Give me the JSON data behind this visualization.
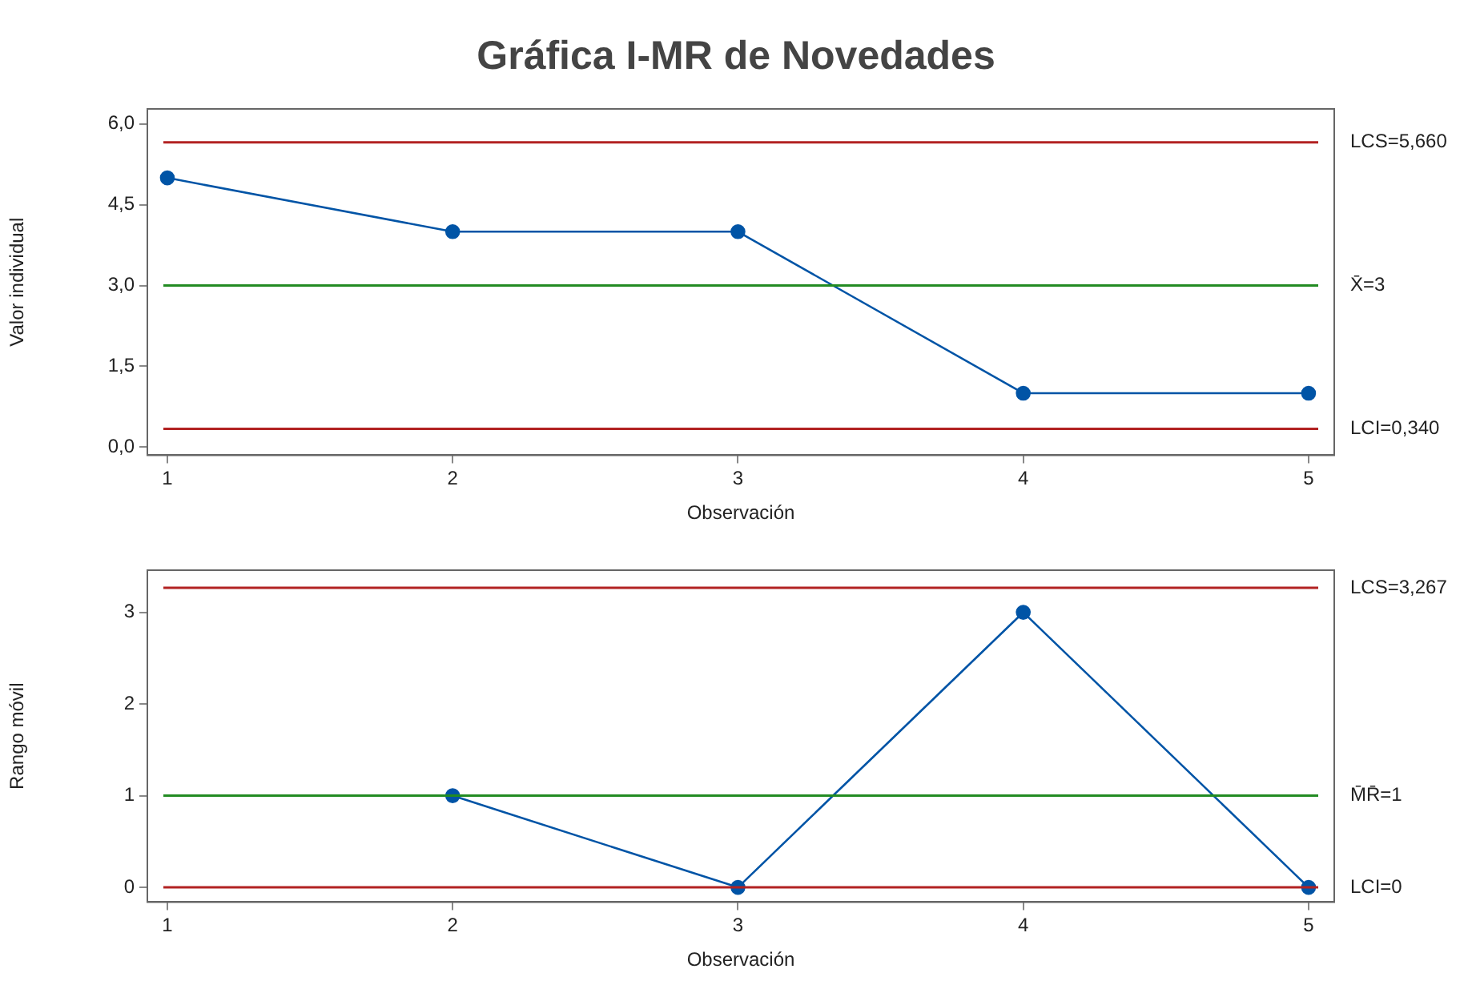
{
  "chart_data": [
    {
      "type": "line",
      "title": "Gráfica I-MR de Novedades",
      "xlabel": "Observación",
      "ylabel": "Valor individual",
      "x": [
        1,
        2,
        3,
        4,
        5
      ],
      "series": [
        {
          "color": "#0054a6",
          "values": [
            5,
            4,
            4,
            1,
            1
          ]
        }
      ],
      "xlim": [
        0.93,
        5.09
      ],
      "xticks": [
        1,
        2,
        3,
        4,
        5
      ],
      "ylim": [
        -0.15,
        6.28
      ],
      "yticks": [
        {
          "value": 0,
          "label": "0,0"
        },
        {
          "value": 1.5,
          "label": "1,5"
        },
        {
          "value": 3,
          "label": "3,0"
        },
        {
          "value": 4.5,
          "label": "4,5"
        },
        {
          "value": 6,
          "label": "6,0"
        }
      ],
      "ref_lines": [
        {
          "axis": "y",
          "value": 5.66,
          "label": "LCS=5,660",
          "color": "#b22222"
        },
        {
          "axis": "y",
          "value": 3,
          "label": "X̄=3",
          "color": "#228b22"
        },
        {
          "axis": "y",
          "value": 0.34,
          "label": "LCI=0,340",
          "color": "#b22222"
        }
      ],
      "marker": "circle",
      "grid": false,
      "legend": false
    },
    {
      "type": "line",
      "xlabel": "Observación",
      "ylabel": "Rango móvil",
      "series": [
        {
          "color": "#0054a6",
          "x": [
            2,
            3,
            4,
            5
          ],
          "values": [
            1,
            0,
            3,
            0
          ]
        }
      ],
      "xlim": [
        0.93,
        5.09
      ],
      "xticks": [
        1,
        2,
        3,
        4,
        5
      ],
      "ylim": [
        -0.16,
        3.46
      ],
      "yticks": [
        0,
        1,
        2,
        3
      ],
      "ref_lines": [
        {
          "axis": "y",
          "value": 3.267,
          "label": "LCS=3,267",
          "color": "#b22222"
        },
        {
          "axis": "y",
          "value": 1,
          "label": "M̄R̄=1",
          "color": "#228b22"
        },
        {
          "axis": "y",
          "value": 0,
          "label": "LCI=0",
          "color": "#b22222"
        }
      ],
      "marker": "circle",
      "grid": false,
      "legend": false
    }
  ]
}
